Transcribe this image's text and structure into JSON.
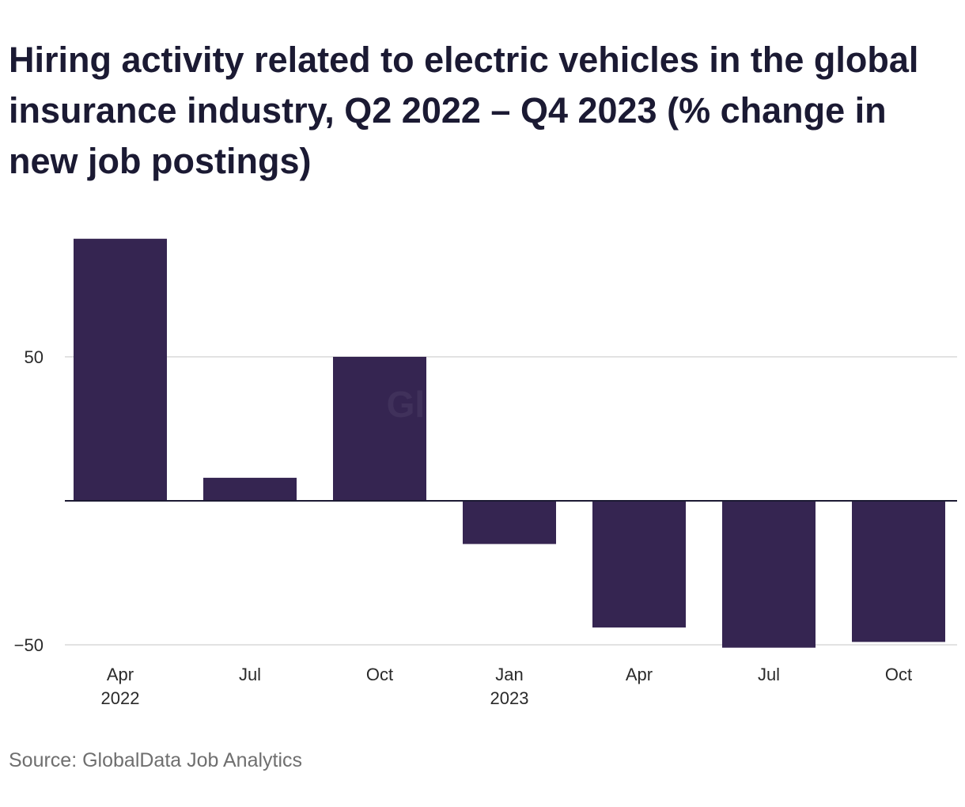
{
  "chart_data": {
    "type": "bar",
    "title": "Hiring activity related to electric vehicles in the global insurance industry, Q2 2022 – Q4 2023 (% change in new job postings)",
    "categories": [
      "Apr 2022",
      "Jul",
      "Oct",
      "Jan 2023",
      "Apr",
      "Jul",
      "Oct"
    ],
    "x_tick_labels": [
      [
        "Apr",
        "2022"
      ],
      [
        "Jul"
      ],
      [
        "Oct"
      ],
      [
        "Jan",
        "2023"
      ],
      [
        "Apr"
      ],
      [
        "Jul"
      ],
      [
        "Oct"
      ]
    ],
    "values": [
      91,
      8,
      50,
      -15,
      -44,
      -51,
      -49
    ],
    "y_ticks": [
      50,
      -50
    ],
    "y_tick_labels": [
      "50",
      "−50"
    ],
    "ylim": [
      -50,
      91
    ],
    "xlabel": "",
    "ylabel": "",
    "grid": true,
    "legend": "none",
    "bar_color": "#352551",
    "grid_color": "#d9d9d9",
    "zero_line_color": "#1c1a33"
  },
  "watermark": "GlobalData",
  "source": "Source: GlobalData Job Analytics"
}
